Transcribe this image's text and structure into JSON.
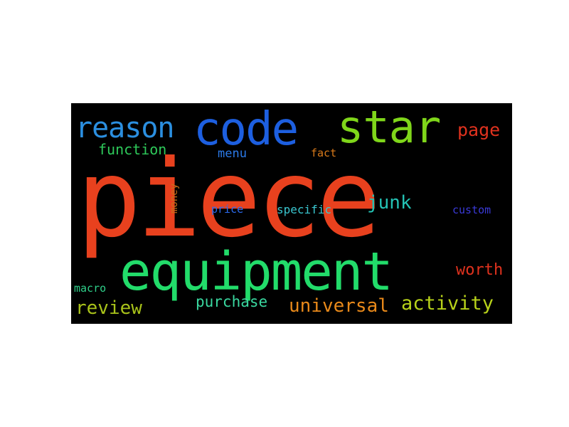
{
  "background_color": "#000000",
  "words": [
    {
      "key": "piece",
      "text": "piece",
      "color": "#e8411e"
    },
    {
      "key": "equipment",
      "text": "equipment",
      "color": "#22dc6a"
    },
    {
      "key": "code",
      "text": "code",
      "color": "#1d5fe0"
    },
    {
      "key": "star",
      "text": "star",
      "color": "#7fd61a"
    },
    {
      "key": "reason",
      "text": "reason",
      "color": "#2b8fe0"
    },
    {
      "key": "page",
      "text": "page",
      "color": "#e0321e"
    },
    {
      "key": "function",
      "text": "function",
      "color": "#2ec95a"
    },
    {
      "key": "menu",
      "text": "menu",
      "color": "#2b7ae8"
    },
    {
      "key": "fact",
      "text": "fact",
      "color": "#d97a1a"
    },
    {
      "key": "junk",
      "text": "junk",
      "color": "#24c2b4"
    },
    {
      "key": "specific",
      "text": "specific",
      "color": "#3ac7d0"
    },
    {
      "key": "price",
      "text": "price",
      "color": "#2b6cf0"
    },
    {
      "key": "custom",
      "text": "custom",
      "color": "#3a3ad8"
    },
    {
      "key": "money",
      "text": "money",
      "color": "#c8701a"
    },
    {
      "key": "worth",
      "text": "worth",
      "color": "#e0321e"
    },
    {
      "key": "macro",
      "text": "macro",
      "color": "#2fd08a"
    },
    {
      "key": "review",
      "text": "review",
      "color": "#a8c21a"
    },
    {
      "key": "purchase",
      "text": "purchase",
      "color": "#3ad8a0"
    },
    {
      "key": "universal",
      "text": "universal",
      "color": "#e8891a"
    },
    {
      "key": "activity",
      "text": "activity",
      "color": "#b8d21a"
    }
  ]
}
